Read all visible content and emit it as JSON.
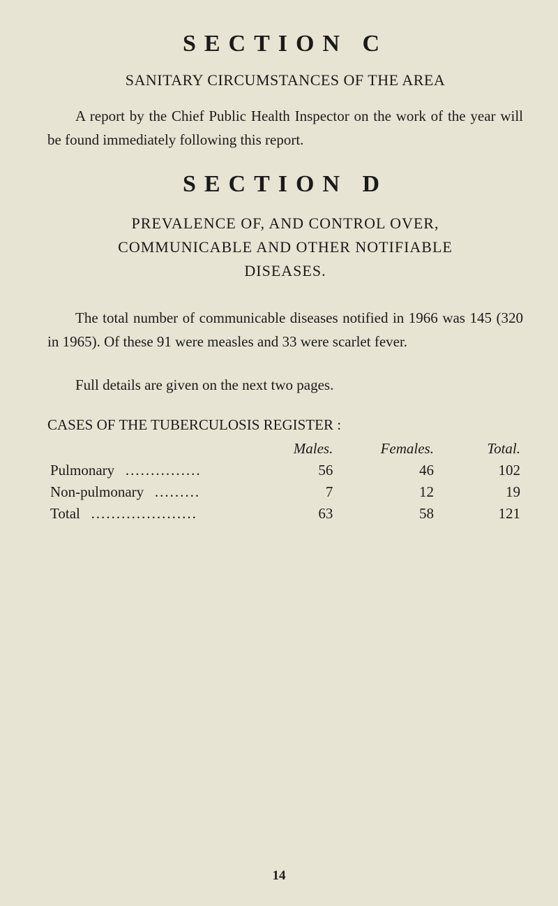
{
  "sectionC": {
    "heading": "SECTION C",
    "subtitle": "SANITARY CIRCUMSTANCES OF THE AREA",
    "body": "A report by the Chief Public Health Inspector on the work of the year will be found immediately following this report."
  },
  "sectionD": {
    "heading": "SECTION D",
    "subtitle_line1": "PREVALENCE OF, AND CONTROL OVER,",
    "subtitle_line2": "COMMUNICABLE AND OTHER NOTIFIABLE",
    "subtitle_line3": "DISEASES.",
    "para1": "The total number of communicable diseases notified in 1966 was 145 (320 in 1965). Of these 91 were measles and 33 were scarlet fever.",
    "para2": "Full details are given on the next two pages.",
    "tableHeading": "CASES OF THE TUBERCULOSIS REGISTER :",
    "table": {
      "headers": {
        "males": "Males.",
        "females": "Females.",
        "total": "Total."
      },
      "rows": [
        {
          "label": "Pulmonary",
          "dots": "...............",
          "males": "56",
          "females": "46",
          "total": "102"
        },
        {
          "label": "Non-pulmonary",
          "dots": ".........",
          "males": "7",
          "females": "12",
          "total": "19"
        },
        {
          "label": "Total",
          "dots": ".....................",
          "males": "63",
          "females": "58",
          "total": "121"
        }
      ]
    }
  },
  "pageNumber": "14",
  "colors": {
    "background": "#e8e4d4",
    "text": "#1a1a1a"
  }
}
